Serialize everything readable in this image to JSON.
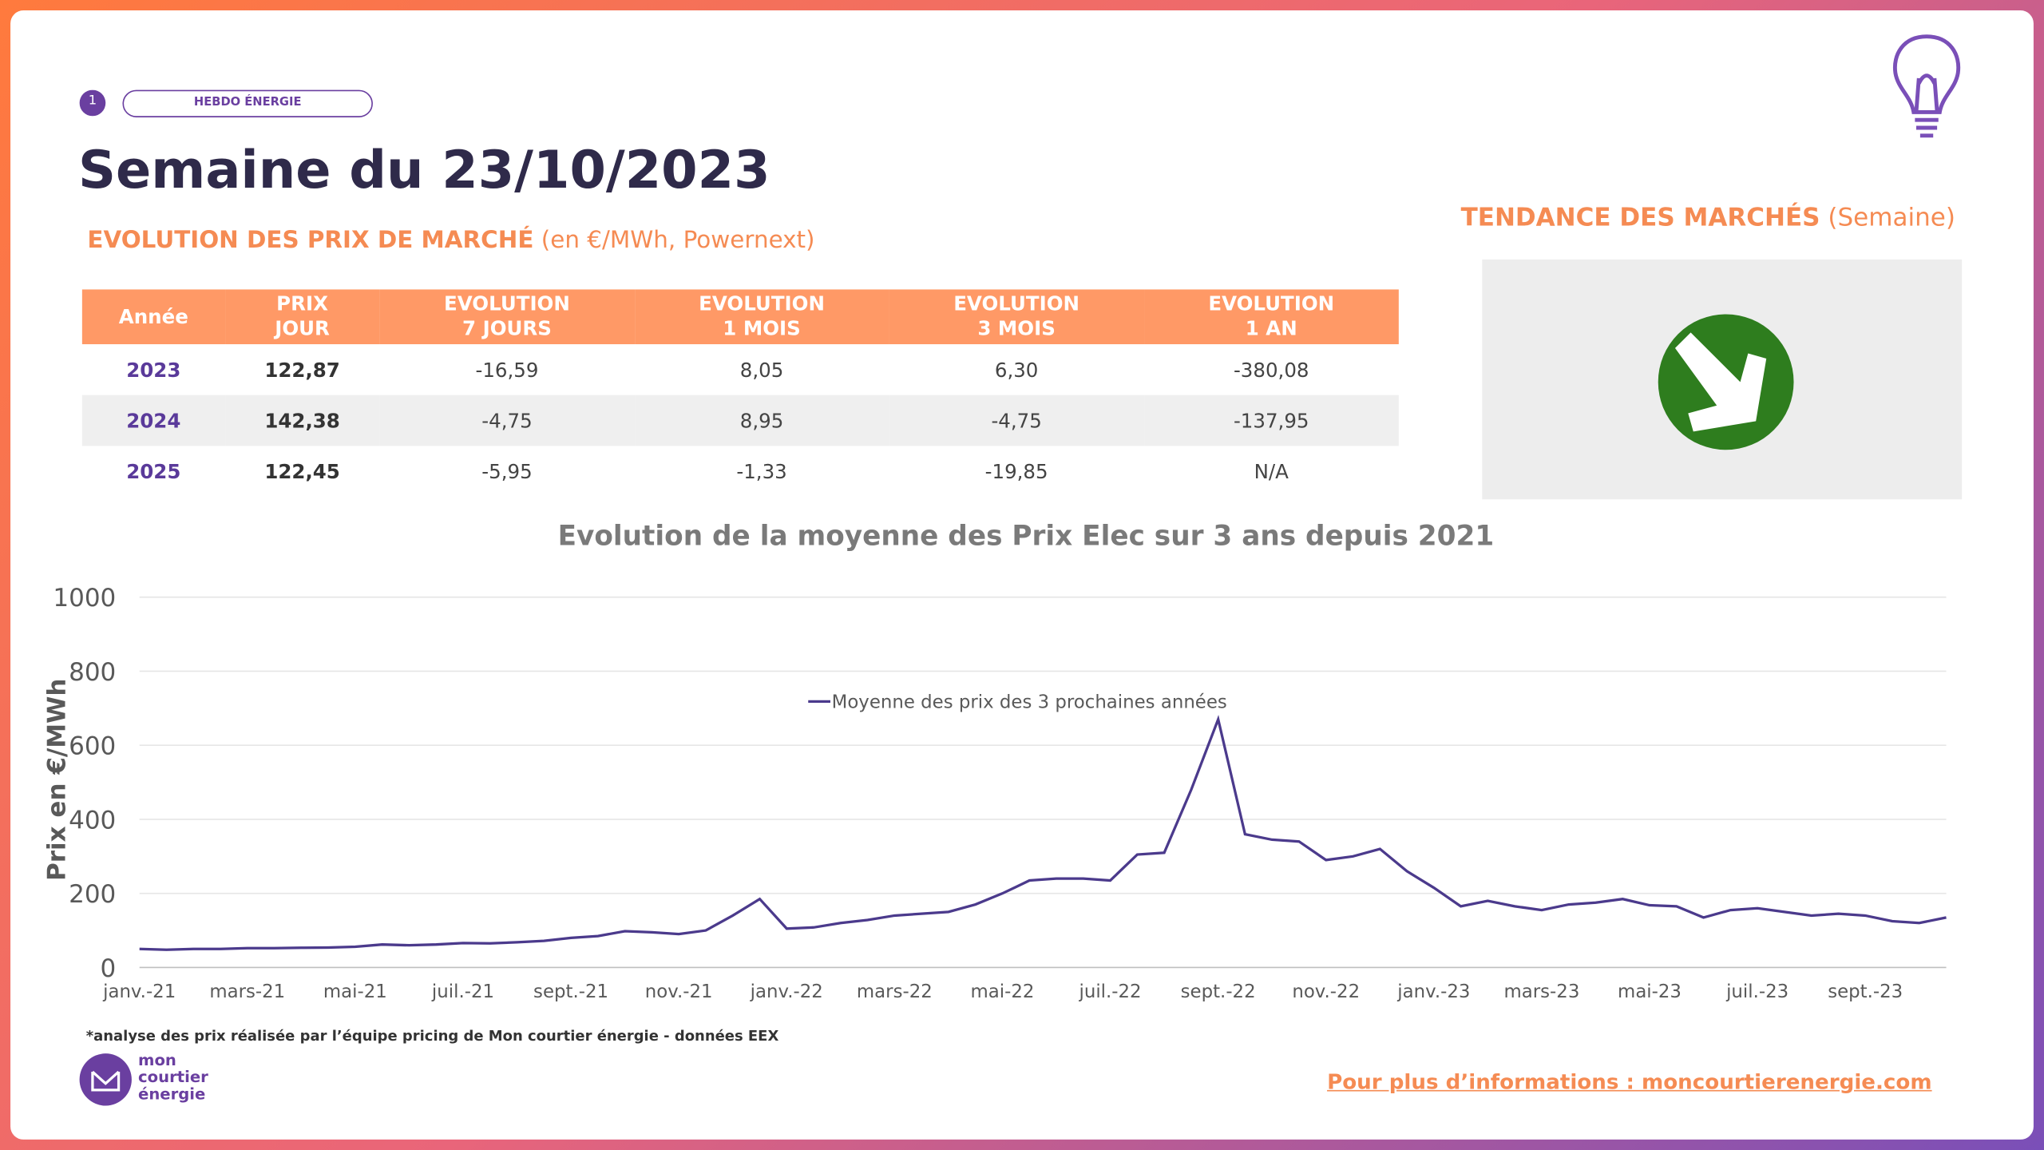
{
  "header": {
    "page_number": "1",
    "tag": "HEBDO ÉNERGIE",
    "title": "Semaine du 23/10/2023",
    "subtitle": "EVOLUTION DES PRIX DE MARCHÉ",
    "subtitle_note": "(en €/MWh, Powernext)"
  },
  "table": {
    "columns": [
      [
        "Année"
      ],
      [
        "PRIX",
        "JOUR"
      ],
      [
        "EVOLUTION",
        "7 JOURS"
      ],
      [
        "EVOLUTION",
        "1 MOIS"
      ],
      [
        "EVOLUTION",
        "3 MOIS"
      ],
      [
        "EVOLUTION",
        "1 AN"
      ]
    ],
    "rows": [
      [
        "2023",
        "122,87",
        "-16,59",
        "8,05",
        "6,30",
        "-380,08"
      ],
      [
        "2024",
        "142,38",
        "-4,75",
        "8,95",
        "-4,75",
        "-137,95"
      ],
      [
        "2025",
        "122,45",
        "-5,95",
        "-1,33",
        "-19,85",
        "N/A"
      ]
    ]
  },
  "trend": {
    "title": "TENDANCE DES MARCHÉS",
    "note": "(Semaine)"
  },
  "chart_data": {
    "type": "line",
    "title": "Evolution de la moyenne des Prix Elec sur 3 ans depuis 2021",
    "y_label": "Prix en €/MWh",
    "categories": [
      "janv.-21",
      null,
      null,
      null,
      "mars-21",
      null,
      null,
      null,
      "mai-21",
      null,
      null,
      null,
      "juil.-21",
      null,
      null,
      null,
      "sept.-21",
      null,
      null,
      null,
      "nov.-21",
      null,
      null,
      null,
      "janv.-22",
      null,
      null,
      null,
      "mars-22",
      null,
      null,
      null,
      "mai-22",
      null,
      null,
      null,
      "juil.-22",
      null,
      null,
      null,
      "sept.-22",
      null,
      null,
      null,
      "nov.-22",
      null,
      null,
      null,
      "janv.-23",
      null,
      null,
      null,
      "mars-23",
      null,
      null,
      null,
      "mai-23",
      null,
      null,
      null,
      "juil.-23",
      null,
      null,
      null,
      "sept.-23",
      null,
      null,
      null
    ],
    "series": [
      {
        "name": "Moyenne des prix des 3 prochaines années",
        "color": "#4b3a8c",
        "values": [
          50,
          48,
          50,
          50,
          52,
          52,
          53,
          54,
          56,
          62,
          60,
          62,
          66,
          65,
          68,
          72,
          80,
          85,
          98,
          95,
          90,
          100,
          140,
          185,
          105,
          108,
          120,
          128,
          140,
          145,
          150,
          170,
          200,
          235,
          240,
          240,
          235,
          305,
          310,
          480,
          670,
          360,
          345,
          340,
          290,
          300,
          320,
          260,
          215,
          165,
          180,
          165,
          155,
          170,
          175,
          185,
          168,
          165,
          135,
          155,
          160,
          150,
          140,
          145,
          140,
          125,
          120,
          135
        ]
      }
    ],
    "ylim": [
      0,
      1000
    ],
    "yticks": [
      0,
      200,
      400,
      600,
      800,
      1000
    ],
    "grid": true,
    "legend": "top"
  },
  "footnote": "*analyse des prix réalisée par l’équipe pricing de Mon courtier énergie -  données EEX",
  "logo": [
    "mon",
    "courtier",
    "énergie"
  ],
  "link": "Pour plus d’informations : moncourtierenergie.com"
}
